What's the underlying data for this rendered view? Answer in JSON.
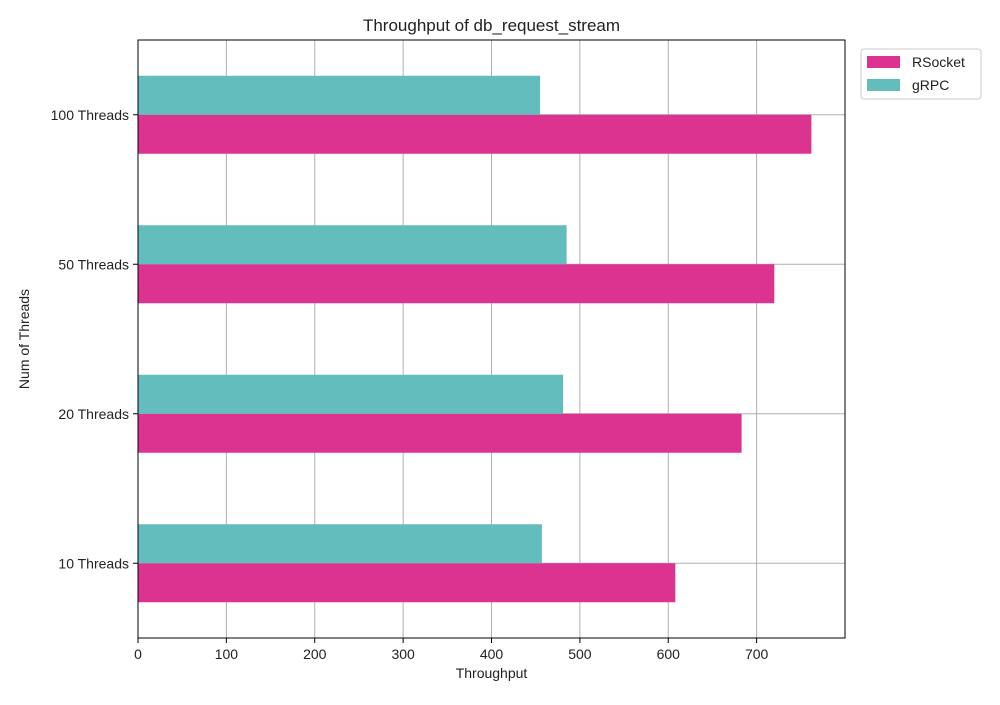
{
  "chart_data": {
    "type": "bar",
    "orientation": "horizontal",
    "title": "Throughput of db_request_stream",
    "xlabel": "Throughput",
    "ylabel": "Num of Threads",
    "categories": [
      "10 Threads",
      "20 Threads",
      "50 Threads",
      "100 Threads"
    ],
    "series": [
      {
        "name": "RSocket",
        "color": "#dc3390",
        "values": [
          608,
          683,
          720,
          762
        ]
      },
      {
        "name": "gRPC",
        "color": "#63bdbc",
        "values": [
          457,
          481,
          485,
          455
        ]
      }
    ],
    "xlim": [
      0,
      800
    ],
    "xticks": [
      0,
      100,
      200,
      300,
      400,
      500,
      600,
      700
    ],
    "grid": true,
    "legend_position": "outside-top-right"
  }
}
